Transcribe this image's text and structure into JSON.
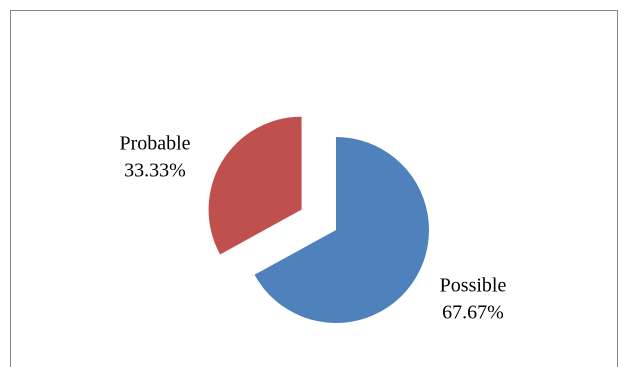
{
  "chart_data": {
    "type": "pie",
    "categories": [
      "Possible",
      "Probable"
    ],
    "values": [
      67.67,
      33.33
    ],
    "value_labels": [
      "67.67%",
      "33.33%"
    ],
    "colors": [
      "#4f81bd",
      "#c0504d"
    ],
    "exploded": [
      false,
      true
    ]
  }
}
